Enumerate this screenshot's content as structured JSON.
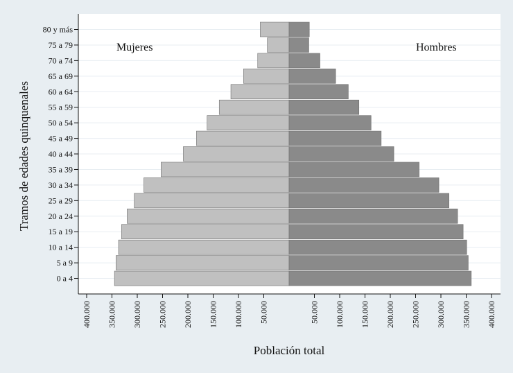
{
  "chart_data": {
    "type": "bar",
    "orientation": "horizontal-pyramid",
    "categories": [
      "0 a 4",
      "5 a 9",
      "10 a 14",
      "15 a 19",
      "20 a 24",
      "25 a 29",
      "30 a 34",
      "35 a 39",
      "40 a 44",
      "45 a 49",
      "50 a 54",
      "55 a 59",
      "60 a 64",
      "65 a 69",
      "70 a 74",
      "75 a 79",
      "80 y más"
    ],
    "series": [
      {
        "name": "Mujeres",
        "side": "left",
        "color": "#c0c0c0",
        "values": [
          345000,
          342000,
          337000,
          331000,
          320000,
          306000,
          287000,
          253000,
          209000,
          183000,
          162000,
          138000,
          115000,
          90000,
          62000,
          43000,
          57000
        ]
      },
      {
        "name": "Hombres",
        "side": "right",
        "color": "#8a8a8a",
        "values": [
          360000,
          354000,
          351000,
          344000,
          333000,
          316000,
          296000,
          257000,
          207000,
          182000,
          162000,
          138000,
          117000,
          92000,
          61000,
          39000,
          40000
        ]
      }
    ],
    "x_ticks_left": [
      "400.000",
      "350.000",
      "300.000",
      "250.000",
      "200.000",
      "150.000",
      "100.000",
      "50.000"
    ],
    "x_ticks_right": [
      "50.000",
      "100.000",
      "150.000",
      "200.000",
      "250.000",
      "300.000",
      "350.000",
      "400.000"
    ],
    "xlim": [
      -400000,
      400000
    ],
    "xlabel": "Población total",
    "ylabel": "Tramos de edades quinquenales",
    "grid": true,
    "colors": {
      "background": "#e8eef2",
      "plot_background": "#ffffff",
      "grid": "#e8eef2"
    }
  }
}
